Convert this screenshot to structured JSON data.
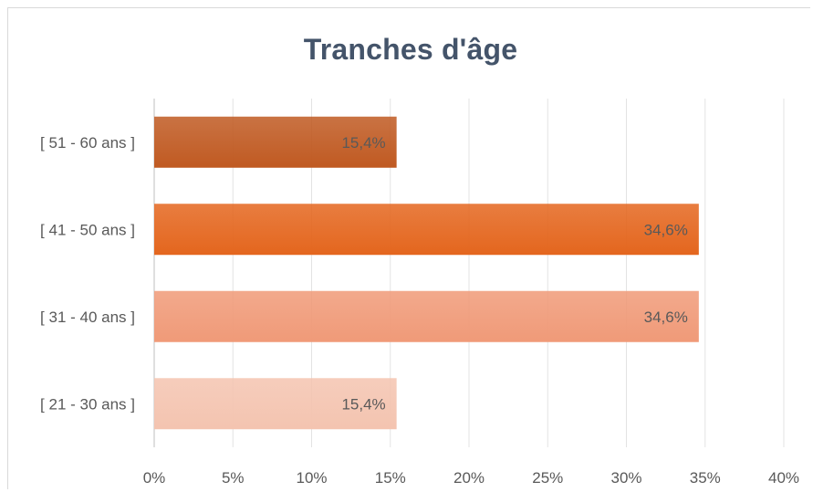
{
  "chart_data": {
    "type": "bar",
    "orientation": "horizontal",
    "title": "Tranches d'âge",
    "categories": [
      "[ 21 - 30 ans ]",
      "[ 31 - 40 ans ]",
      "[ 41 - 50 ans ]",
      "[ 51 - 60 ans ]"
    ],
    "values": [
      15.4,
      34.6,
      34.6,
      15.4
    ],
    "data_labels": [
      "15,4%",
      "34,6%",
      "34,6%",
      "15,4%"
    ],
    "bar_colors": [
      "#f4c4b0",
      "#f09a78",
      "#e4661e",
      "#c05a22"
    ],
    "xlim": [
      0,
      40
    ],
    "x_ticks": [
      "0%",
      "5%",
      "10%",
      "15%",
      "20%",
      "25%",
      "30%",
      "35%",
      "40%"
    ],
    "grid": true,
    "legend": "none"
  }
}
